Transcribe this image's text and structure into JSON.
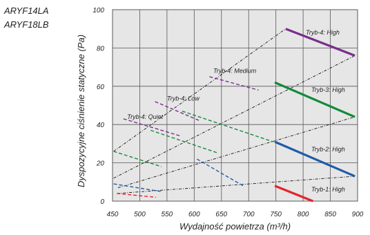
{
  "models": [
    "ARYF14LA",
    "ARYF18LB"
  ],
  "chart_data": {
    "type": "line",
    "xlabel": "Wydajność powietrza (m³/h)",
    "ylabel": "Dyspozycyjne ciśnienie statyczne (Pa)",
    "xlim": [
      450,
      900
    ],
    "ylim": [
      0,
      100
    ],
    "x_ticks": [
      450,
      500,
      550,
      600,
      650,
      700,
      750,
      800,
      850,
      900
    ],
    "y_ticks": [
      0,
      20,
      40,
      60,
      80,
      100
    ],
    "grid": true,
    "series": [
      {
        "name": "Tryb-1: High",
        "color": "#e4242b",
        "solid": [
          [
            748,
            8
          ],
          [
            818,
            0
          ]
        ],
        "dashed": [
          [
            458,
            4
          ],
          [
            530,
            2
          ],
          [
            600,
            0
          ]
        ]
      },
      {
        "name": "Tryb-2: High",
        "color": "#1f5ba8",
        "solid": [
          [
            748,
            31
          ],
          [
            895,
            13
          ]
        ],
        "dashed": [
          [
            452,
            9
          ],
          [
            540,
            5
          ],
          [
            605,
            22
          ],
          [
            690,
            8
          ]
        ]
      },
      {
        "name": "Tryb-3: High",
        "color": "#138a3a",
        "solid": [
          [
            748,
            62
          ],
          [
            895,
            44
          ]
        ],
        "dashed": [
          [
            452,
            26
          ],
          [
            540,
            18
          ],
          [
            578,
            47
          ],
          [
            745,
            31
          ],
          [
            520,
            37
          ],
          [
            645,
            25
          ]
        ]
      },
      {
        "name": "Tryb-4: Quiet",
        "color": "#7a2e8c",
        "dashed": [
          [
            470,
            43
          ],
          [
            575,
            34
          ]
        ]
      },
      {
        "name": "Tryb-4: Low",
        "color": "#7a2e8c",
        "dashed": [
          [
            528,
            52
          ],
          [
            610,
            42
          ]
        ]
      },
      {
        "name": "Tryb-4: Medium",
        "color": "#7a2e8c",
        "dashed": [
          [
            628,
            65
          ],
          [
            718,
            58
          ]
        ]
      },
      {
        "name": "Tryb-4: High",
        "color": "#7a2e8c",
        "solid": [
          [
            768,
            90
          ],
          [
            895,
            76
          ]
        ]
      }
    ],
    "system_curves": [
      [
        [
          452,
          12
        ],
        [
          895,
          76
        ]
      ],
      [
        [
          452,
          26
        ],
        [
          768,
          90
        ]
      ],
      [
        [
          460,
          7
        ],
        [
          895,
          44
        ]
      ],
      [
        [
          458,
          4
        ],
        [
          895,
          13
        ]
      ]
    ],
    "label_positions": [
      {
        "text": "Tryb-4: High",
        "x": 805,
        "y": 87
      },
      {
        "text": "Tryb-4: Medium",
        "x": 635,
        "y": 67
      },
      {
        "text": "Tryb-4: Low",
        "x": 550,
        "y": 52.5
      },
      {
        "text": "Tryb-4: Quiet",
        "x": 477,
        "y": 43
      },
      {
        "text": "Tryb-3: High",
        "x": 815,
        "y": 57
      },
      {
        "text": "Tryb-2: High",
        "x": 815,
        "y": 26
      },
      {
        "text": "Tryb-1: High",
        "x": 815,
        "y": 5
      }
    ]
  }
}
